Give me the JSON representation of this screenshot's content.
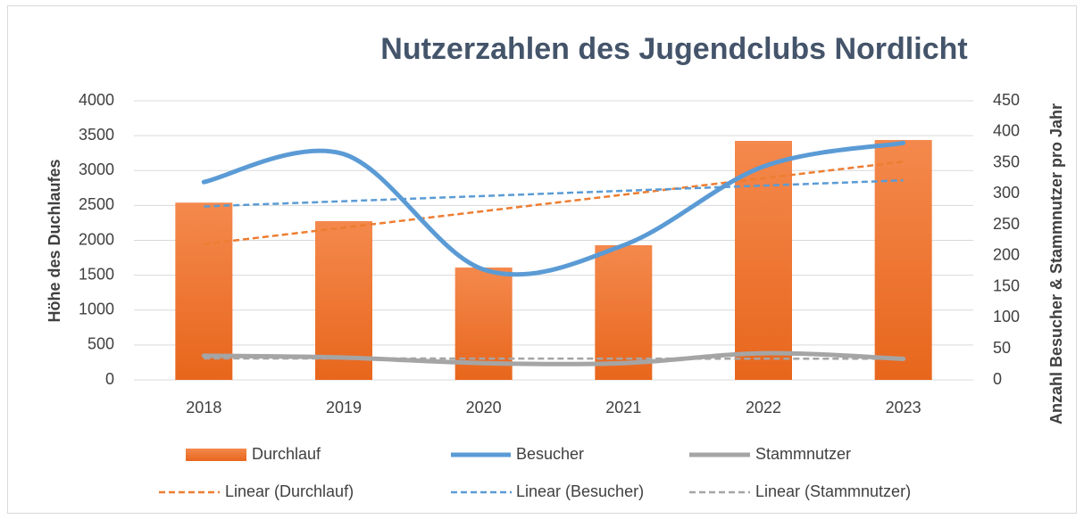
{
  "chart_data": {
    "type": "bar-line",
    "title": "Nutzerzahlen des Jugendclubs Nordlicht",
    "ylabel": "Höhe des Duchlaufes",
    "y2label": "Anzahl Besucher & Stammnutzer pro Jahr",
    "categories": [
      "2018",
      "2019",
      "2020",
      "2021",
      "2022",
      "2023"
    ],
    "series": [
      {
        "name": "Durchlauf",
        "type": "bar",
        "color": "#ed7d31",
        "values": [
          2540,
          2275,
          1610,
          1930,
          3425,
          3438
        ],
        "trendline": "Linear (Durchlauf)"
      },
      {
        "name": "Besucher",
        "type": "line",
        "axis": "y2",
        "color": "#5b9bd5",
        "values": [
          319,
          364,
          178,
          217,
          344,
          382
        ],
        "trendline": "Linear (Besucher)"
      },
      {
        "name": "Stammnutzer",
        "type": "line",
        "axis": "y2",
        "color": "#a5a5a5",
        "values": [
          39,
          36,
          27,
          27,
          43,
          34
        ],
        "trendline": "Linear (Stammnutzer)"
      }
    ],
    "ylim": [
      0,
      4000
    ],
    "yticks": [
      0,
      500,
      1000,
      1500,
      2000,
      2500,
      3000,
      3500,
      4000
    ],
    "y2lim": [
      0,
      450
    ],
    "y2ticks": [
      0,
      50,
      100,
      150,
      200,
      250,
      300,
      350,
      400,
      450
    ],
    "grid": true
  }
}
